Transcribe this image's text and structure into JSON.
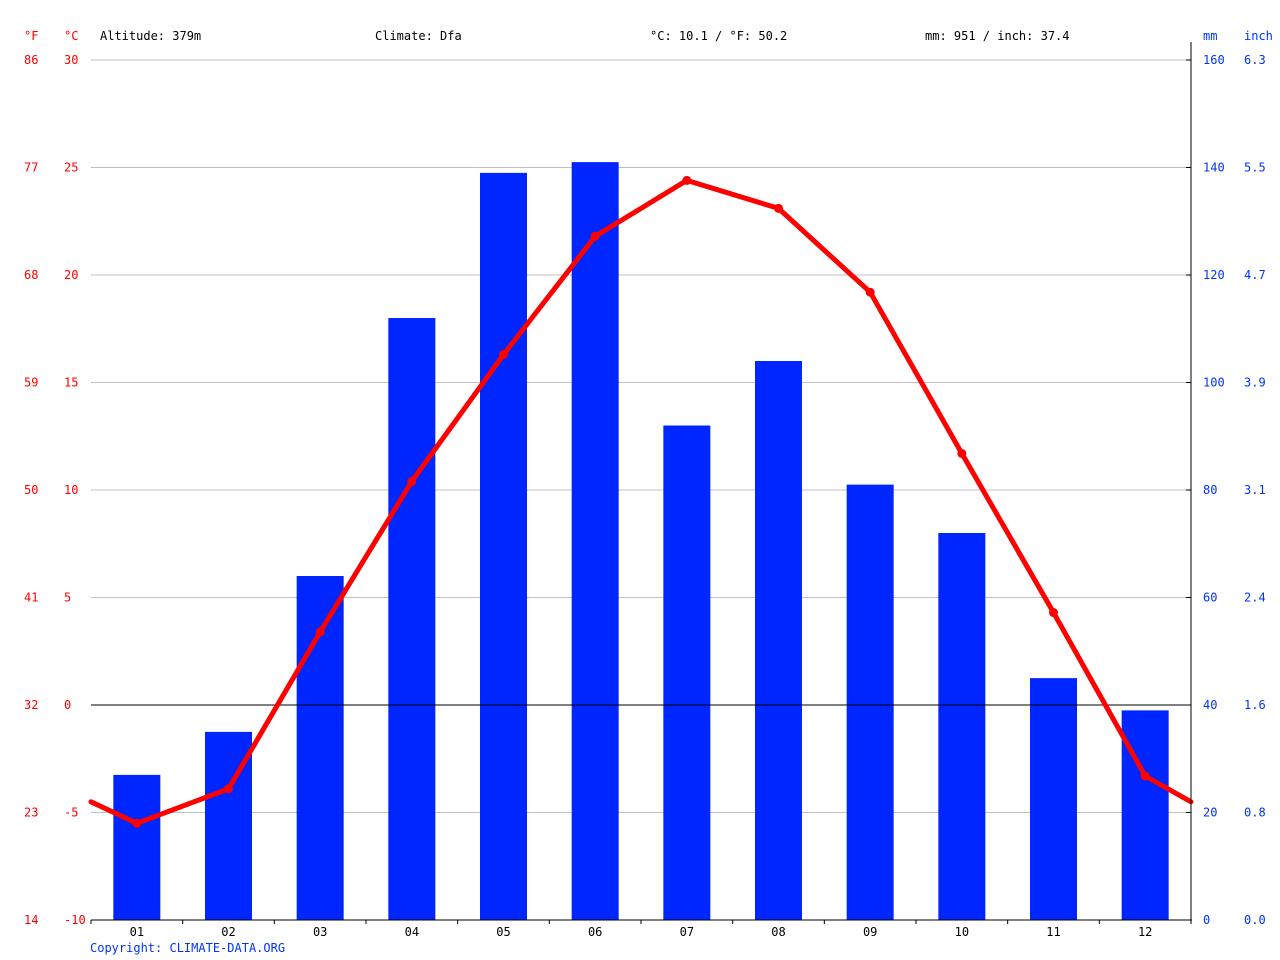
{
  "header": {
    "unit_f": "°F",
    "unit_c": "°C",
    "altitude": "Altitude: 379m",
    "climate": "Climate: Dfa",
    "temp_avg": "°C: 10.1 / °F: 50.2",
    "precip_total": "mm: 951 / inch: 37.4",
    "unit_mm": "mm",
    "unit_inch": "inch"
  },
  "copyright": "Copyright: CLIMATE-DATA.ORG",
  "colors": {
    "temperature": "#ff0000",
    "precipitation": "#0026ff",
    "grid": "#c0c0c0",
    "zero_line": "#000000",
    "copyright": "#0033ff"
  },
  "chart_data": {
    "type": "bar",
    "categories": [
      "01",
      "02",
      "03",
      "04",
      "05",
      "06",
      "07",
      "08",
      "09",
      "10",
      "11",
      "12"
    ],
    "series": [
      {
        "type": "bar",
        "axis": "right",
        "values": [
          27,
          35,
          64,
          112,
          139,
          141,
          92,
          104,
          81,
          72,
          45,
          39
        ]
      },
      {
        "type": "line",
        "axis": "left",
        "values": [
          -5.5,
          -3.9,
          3.4,
          10.4,
          16.3,
          21.8,
          24.4,
          23.1,
          19.2,
          11.7,
          4.3,
          -3.3
        ],
        "edge_start": -4.5,
        "edge_end": -4.5
      }
    ],
    "y_left": {
      "range": [
        -10,
        30
      ],
      "ticks_c": [
        "-10",
        "-5",
        "0",
        "5",
        "10",
        "15",
        "20",
        "25",
        "30"
      ],
      "ticks_f": [
        "14",
        "23",
        "32",
        "41",
        "50",
        "59",
        "68",
        "77",
        "86"
      ]
    },
    "y_right": {
      "range": [
        0,
        160
      ],
      "ticks_mm": [
        "0",
        "20",
        "40",
        "60",
        "80",
        "100",
        "120",
        "140",
        "160"
      ],
      "ticks_inch": [
        "0.0",
        "0.8",
        "1.6",
        "2.4",
        "3.1",
        "3.9",
        "4.7",
        "5.5",
        "6.3"
      ]
    },
    "grid": true
  }
}
